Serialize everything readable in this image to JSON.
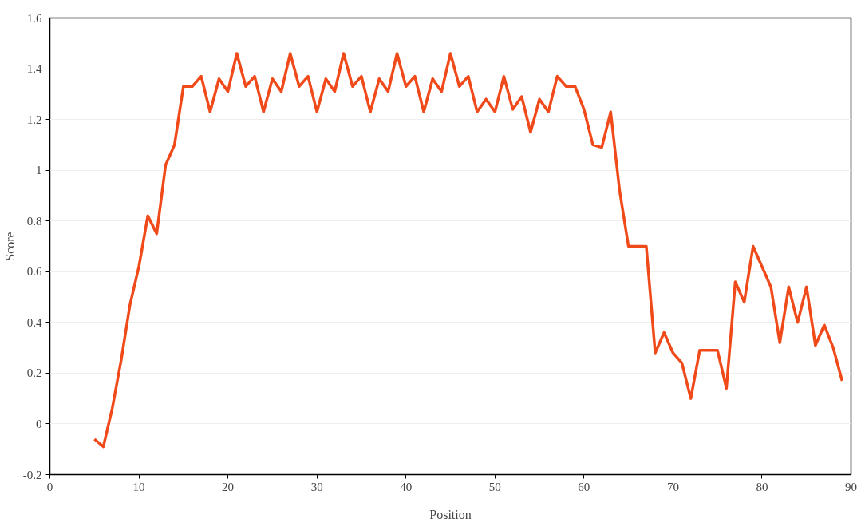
{
  "chart_data": {
    "type": "line",
    "xlabel": "Position",
    "ylabel": "Score",
    "x": [
      5,
      6,
      7,
      8,
      9,
      10,
      11,
      12,
      13,
      14,
      15,
      16,
      17,
      18,
      19,
      20,
      21,
      22,
      23,
      24,
      25,
      26,
      27,
      28,
      29,
      30,
      31,
      32,
      33,
      34,
      35,
      36,
      37,
      38,
      39,
      40,
      41,
      42,
      43,
      44,
      45,
      46,
      47,
      48,
      49,
      50,
      51,
      52,
      53,
      54,
      55,
      56,
      57,
      58,
      59,
      60,
      61,
      62,
      63,
      64,
      65,
      66,
      67,
      68,
      69,
      70,
      71,
      72,
      73,
      74,
      75,
      76,
      77,
      78,
      79,
      80,
      81,
      82,
      83,
      84,
      85,
      86,
      87,
      88,
      89
    ],
    "series": [
      {
        "color": "#f04a1a",
        "values": [
          -0.06,
          -0.09,
          0.06,
          0.25,
          0.47,
          0.62,
          0.82,
          0.75,
          1.02,
          1.1,
          1.33,
          1.33,
          1.37,
          1.23,
          1.36,
          1.31,
          1.46,
          1.33,
          1.37,
          1.23,
          1.36,
          1.31,
          1.46,
          1.33,
          1.37,
          1.23,
          1.36,
          1.31,
          1.46,
          1.33,
          1.37,
          1.23,
          1.36,
          1.31,
          1.46,
          1.33,
          1.37,
          1.23,
          1.36,
          1.31,
          1.46,
          1.33,
          1.37,
          1.23,
          1.28,
          1.23,
          1.37,
          1.24,
          1.29,
          1.15,
          1.28,
          1.23,
          1.37,
          1.33,
          1.33,
          1.24,
          1.1,
          1.09,
          1.23,
          0.92,
          0.7,
          0.7,
          0.7,
          0.28,
          0.36,
          0.28,
          0.24,
          0.1,
          0.29,
          0.29,
          0.29,
          0.14,
          0.56,
          0.48,
          0.7,
          0.62,
          0.54,
          0.32,
          0.54,
          0.4,
          0.54,
          0.31,
          0.39,
          0.3,
          0.17
        ]
      }
    ],
    "xlim": [
      0,
      90
    ],
    "xticks": [
      0,
      10,
      20,
      30,
      40,
      50,
      60,
      70,
      80,
      90
    ],
    "ylim": [
      -0.2,
      1.6
    ],
    "yticks": [
      -0.2,
      0,
      0.2,
      0.4,
      0.6,
      0.8,
      1,
      1.2,
      1.4,
      1.6
    ],
    "grid": "y",
    "marker": "none",
    "line_style": "solid"
  }
}
